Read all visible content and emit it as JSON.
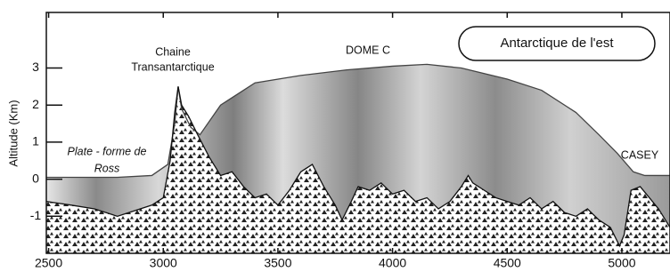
{
  "chart_data": {
    "type": "profile",
    "ylabel": "Altitude (Km)",
    "annotations": [
      {
        "lines": [
          "Chaine",
          "Transantarctique"
        ]
      },
      {
        "lines": [
          "DOME C"
        ]
      },
      {
        "lines": [
          "Antarctique de l'est"
        ]
      },
      {
        "lines": [
          "Plate - forme de",
          "Ross"
        ]
      },
      {
        "lines": [
          "CASEY"
        ]
      }
    ],
    "xlim": [
      2490,
      5210
    ],
    "ylim": [
      -2,
      4.5
    ],
    "xticks": [
      2500,
      3000,
      3500,
      4000,
      4500,
      5000
    ],
    "yticks": [
      -1,
      0,
      1,
      2,
      3
    ],
    "series": [
      {
        "color": "#444444",
        "x": [
          2490,
          2600,
          2800,
          2950,
          3020,
          3050,
          3065,
          3080,
          3120,
          3160,
          3250,
          3400,
          3600,
          3800,
          4000,
          4150,
          4300,
          4500,
          4650,
          4800,
          4900,
          4980,
          5050,
          5100,
          5210
        ],
        "values": [
          0.05,
          0.05,
          0.05,
          0.1,
          0.4,
          1.5,
          2.5,
          1.9,
          1.4,
          1.2,
          2.0,
          2.6,
          2.8,
          2.95,
          3.05,
          3.1,
          3.0,
          2.7,
          2.4,
          1.8,
          1.2,
          0.7,
          0.2,
          0.1,
          0.1
        ]
      },
      {
        "color": "#111111",
        "x": [
          2490,
          2600,
          2700,
          2800,
          2850,
          2950,
          3000,
          3030,
          3050,
          3065,
          3080,
          3110,
          3150,
          3200,
          3250,
          3300,
          3350,
          3400,
          3450,
          3500,
          3550,
          3600,
          3650,
          3700,
          3750,
          3780,
          3820,
          3850,
          3900,
          3950,
          4000,
          4050,
          4100,
          4150,
          4200,
          4250,
          4300,
          4330,
          4350,
          4400,
          4450,
          4500,
          4550,
          4600,
          4650,
          4700,
          4750,
          4800,
          4850,
          4900,
          4950,
          4990,
          5010,
          5040,
          5080,
          5120,
          5160,
          5210
        ],
        "values": [
          -0.6,
          -0.7,
          -0.8,
          -1.0,
          -0.9,
          -0.7,
          -0.5,
          0.5,
          1.8,
          2.5,
          2.0,
          1.7,
          1.2,
          0.6,
          0.1,
          0.2,
          -0.2,
          -0.5,
          -0.4,
          -0.7,
          -0.3,
          0.2,
          0.4,
          -0.2,
          -0.7,
          -1.1,
          -0.6,
          -0.2,
          -0.3,
          -0.1,
          -0.4,
          -0.3,
          -0.6,
          -0.5,
          -0.8,
          -0.6,
          -0.2,
          0.1,
          -0.1,
          -0.3,
          -0.5,
          -0.6,
          -0.7,
          -0.5,
          -0.8,
          -0.6,
          -0.9,
          -1.0,
          -0.8,
          -1.1,
          -1.3,
          -1.8,
          -1.5,
          -0.3,
          -0.2,
          -0.5,
          -0.8,
          -1.3
        ]
      }
    ]
  }
}
